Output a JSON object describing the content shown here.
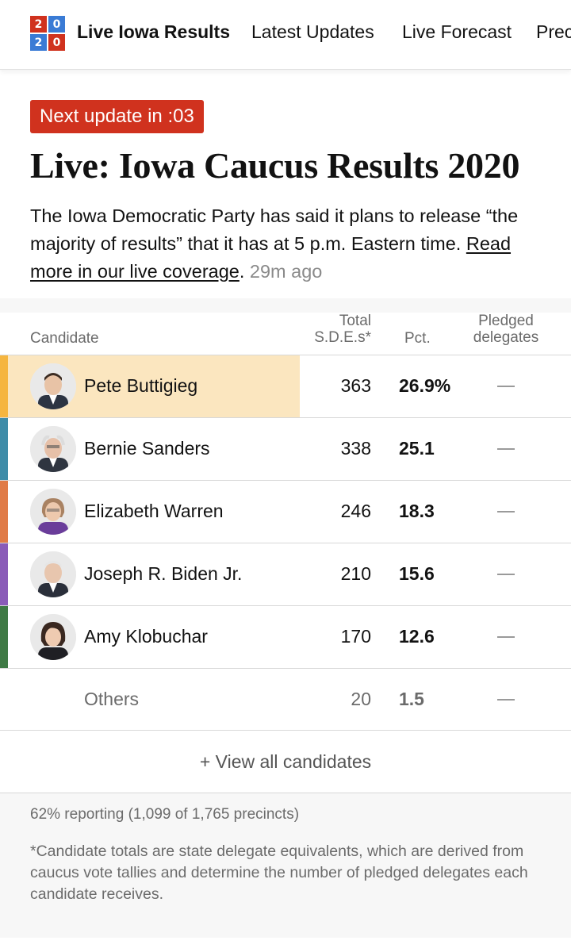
{
  "logo": {
    "digits": [
      "2",
      "0",
      "2",
      "0"
    ],
    "colors": [
      "#d0321e",
      "#3a7bd5",
      "#3a7bd5",
      "#d0321e"
    ]
  },
  "nav": {
    "items": [
      {
        "label": "Live Iowa Results",
        "active": true
      },
      {
        "label": "Latest Updates",
        "active": false
      },
      {
        "label": "Live Forecast",
        "active": false
      },
      {
        "label": "Prec",
        "active": false
      }
    ]
  },
  "badge": {
    "label": "Next update in :03",
    "color": "#d0321e"
  },
  "headline": "Live: Iowa Caucus Results 2020",
  "summary": {
    "text": "The Iowa Democratic Party has said it plans to release “the majority of results” that it has at 5 p.m. Eastern time.",
    "link": "Read more in our live coverage",
    "period": ".",
    "ago": "29m ago"
  },
  "table": {
    "headers": {
      "candidate": "Candidate",
      "sde_line1": "Total",
      "sde_line2": "S.D.E.s*",
      "pct": "Pct.",
      "pledged_line1": "Pledged",
      "pledged_line2": "delegates"
    },
    "rows": [
      {
        "name": "Pete Buttigieg",
        "sdes": "363",
        "pct": "26.9%",
        "pledged": "—",
        "color": "#f5b53f",
        "leader": true,
        "avatar": "buttigieg-avatar"
      },
      {
        "name": "Bernie Sanders",
        "sdes": "338",
        "pct": "25.1",
        "pledged": "—",
        "color": "#3f8ca8",
        "leader": false,
        "avatar": "sanders-avatar"
      },
      {
        "name": "Elizabeth Warren",
        "sdes": "246",
        "pct": "18.3",
        "pledged": "—",
        "color": "#e07b47",
        "leader": false,
        "avatar": "warren-avatar"
      },
      {
        "name": "Joseph R. Biden Jr.",
        "sdes": "210",
        "pct": "15.6",
        "pledged": "—",
        "color": "#8a5cb8",
        "leader": false,
        "avatar": "biden-avatar"
      },
      {
        "name": "Amy Klobuchar",
        "sdes": "170",
        "pct": "12.6",
        "pledged": "—",
        "color": "#3f7a45",
        "leader": false,
        "avatar": "klobuchar-avatar"
      },
      {
        "name": "Others",
        "sdes": "20",
        "pct": "1.5",
        "pledged": "—",
        "color": "",
        "leader": false,
        "avatar": ""
      }
    ],
    "view_all": "+ View all candidates"
  },
  "footer": {
    "reporting": "62% reporting (1,099 of 1,765 precincts)",
    "note": "*Candidate totals are state delegate equivalents, which are derived from caucus vote tallies and determine the number of pledged delegates each candidate receives."
  }
}
